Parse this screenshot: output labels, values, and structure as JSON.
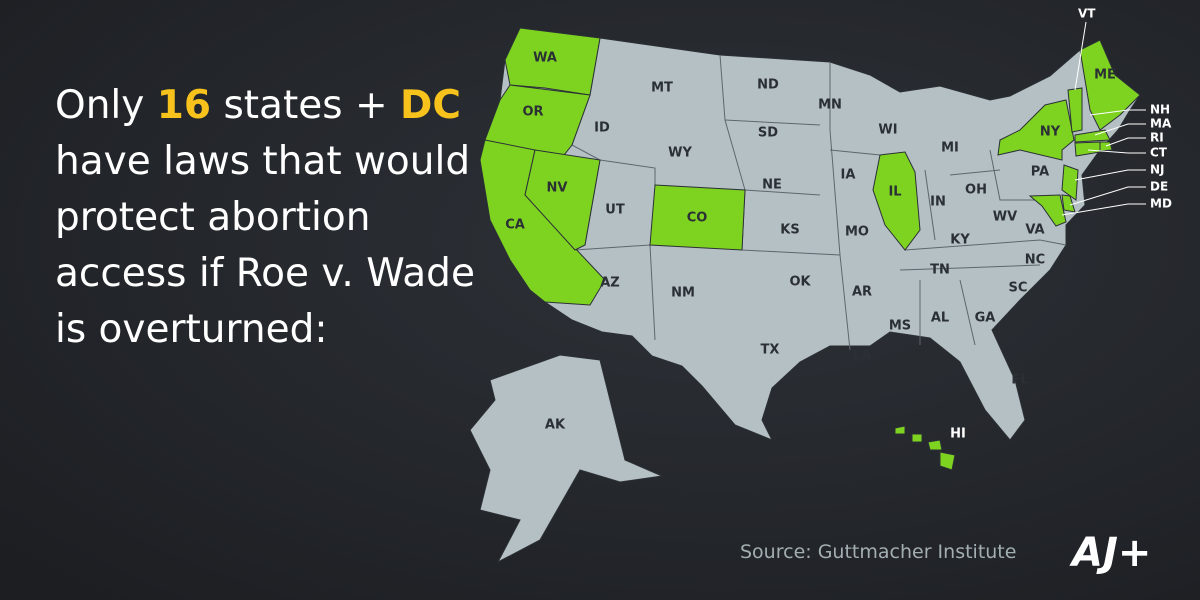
{
  "headline": {
    "first_line": [
      "Only",
      "16",
      "states +",
      "DC"
    ],
    "lines": [
      "have laws that would",
      "protect abortion",
      "access if Roe v. Wade",
      "is overturned:"
    ]
  },
  "highlight_color": "#f7c21b",
  "protected_color": "#7ed321",
  "other_color": "#b5c0c4",
  "states": [
    {
      "label": "WA",
      "protected": true
    },
    {
      "label": "OR",
      "protected": true
    },
    {
      "label": "CA",
      "protected": true
    },
    {
      "label": "NV",
      "protected": true
    },
    {
      "label": "ID",
      "protected": false
    },
    {
      "label": "MT",
      "protected": false
    },
    {
      "label": "WY",
      "protected": false
    },
    {
      "label": "UT",
      "protected": false
    },
    {
      "label": "CO",
      "protected": true
    },
    {
      "label": "AZ",
      "protected": false
    },
    {
      "label": "NM",
      "protected": false
    },
    {
      "label": "ND",
      "protected": false
    },
    {
      "label": "SD",
      "protected": false
    },
    {
      "label": "NE",
      "protected": false
    },
    {
      "label": "KS",
      "protected": false
    },
    {
      "label": "OK",
      "protected": false
    },
    {
      "label": "TX",
      "protected": false
    },
    {
      "label": "MN",
      "protected": false
    },
    {
      "label": "IA",
      "protected": false
    },
    {
      "label": "MO",
      "protected": false
    },
    {
      "label": "AR",
      "protected": false
    },
    {
      "label": "LA",
      "protected": false
    },
    {
      "label": "WI",
      "protected": false
    },
    {
      "label": "IL",
      "protected": true
    },
    {
      "label": "MI",
      "protected": false
    },
    {
      "label": "IN",
      "protected": false
    },
    {
      "label": "OH",
      "protected": false
    },
    {
      "label": "KY",
      "protected": false
    },
    {
      "label": "TN",
      "protected": false
    },
    {
      "label": "MS",
      "protected": false
    },
    {
      "label": "AL",
      "protected": false
    },
    {
      "label": "GA",
      "protected": false
    },
    {
      "label": "FL",
      "protected": false
    },
    {
      "label": "SC",
      "protected": false
    },
    {
      "label": "NC",
      "protected": false
    },
    {
      "label": "VA",
      "protected": false
    },
    {
      "label": "WV",
      "protected": false
    },
    {
      "label": "PA",
      "protected": false
    },
    {
      "label": "NY",
      "protected": true
    },
    {
      "label": "VT",
      "protected": true
    },
    {
      "label": "ME",
      "protected": true
    },
    {
      "label": "NH",
      "protected": false
    },
    {
      "label": "MA",
      "protected": true
    },
    {
      "label": "RI",
      "protected": true
    },
    {
      "label": "CT",
      "protected": true
    },
    {
      "label": "NJ",
      "protected": true
    },
    {
      "label": "DE",
      "protected": true
    },
    {
      "label": "MD",
      "protected": true
    },
    {
      "label": "AK",
      "protected": false
    },
    {
      "label": "HI",
      "protected": true
    }
  ],
  "source": "Source: Guttmacher Institute",
  "logo": "AJ+"
}
